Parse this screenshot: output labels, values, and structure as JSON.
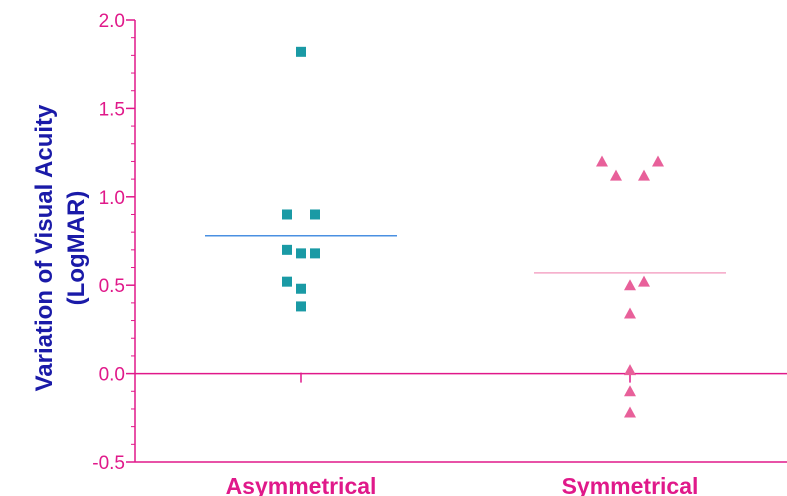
{
  "chart_data": {
    "type": "scatter",
    "ylabel_line1": "Variation of Visual Acuity",
    "ylabel_line2": "(LogMAR)",
    "categories": [
      "Asymmetrical",
      "Symmetrical"
    ],
    "ylim": [
      -0.5,
      2.0
    ],
    "yticks": [
      2.0,
      1.5,
      1.0,
      0.5,
      0.0,
      -0.5
    ],
    "ytick_labels": [
      "2.0",
      "1.5",
      "1.0",
      "0.5",
      "0.0",
      "-0.5"
    ],
    "reference_line": 0.0,
    "series": [
      {
        "category": "Asymmetrical",
        "marker": "square",
        "color": "#1a9aa5",
        "mean_color": "#4a90e2",
        "mean": 0.78,
        "points": [
          {
            "offset": 0,
            "y": 1.82
          },
          {
            "offset": -0.5,
            "y": 0.9
          },
          {
            "offset": 0.5,
            "y": 0.9
          },
          {
            "offset": -0.5,
            "y": 0.7
          },
          {
            "offset": 0,
            "y": 0.68
          },
          {
            "offset": 0.5,
            "y": 0.68
          },
          {
            "offset": -0.5,
            "y": 0.52
          },
          {
            "offset": 0,
            "y": 0.48
          },
          {
            "offset": 0,
            "y": 0.38
          }
        ]
      },
      {
        "category": "Symmetrical",
        "marker": "triangle",
        "color": "#e8609a",
        "mean_color": "#f4a6c6",
        "mean": 0.57,
        "points": [
          {
            "offset": -1,
            "y": 1.2
          },
          {
            "offset": 1,
            "y": 1.2
          },
          {
            "offset": -0.5,
            "y": 1.12
          },
          {
            "offset": 0.5,
            "y": 1.12
          },
          {
            "offset": 0,
            "y": 0.5
          },
          {
            "offset": 0.5,
            "y": 0.52
          },
          {
            "offset": 0,
            "y": 0.34
          },
          {
            "offset": 0,
            "y": 0.02
          },
          {
            "offset": 0,
            "y": -0.1
          },
          {
            "offset": 0,
            "y": -0.22
          }
        ]
      }
    ],
    "colors": {
      "axis": "#e0198a",
      "ylabel": "#1a1aa8",
      "ticklabel": "#e0198a"
    }
  }
}
